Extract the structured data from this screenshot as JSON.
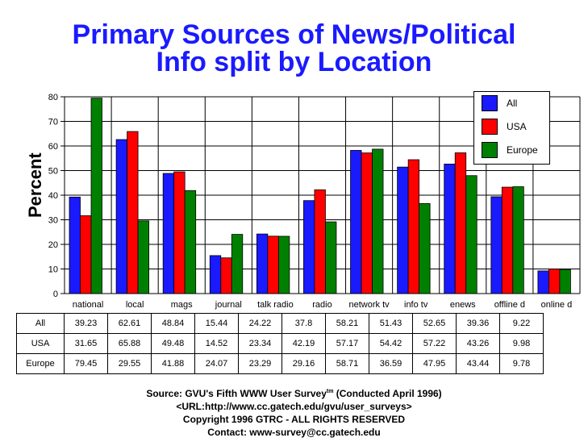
{
  "title_line1": "Primary Sources of News/Political",
  "title_line2": "Info split by Location",
  "chart_data": {
    "type": "bar",
    "title": "Primary Sources of News/Political Info split by Location",
    "ylabel": "Percent",
    "xlabel": "",
    "ylim": [
      0,
      80
    ],
    "yticks": [
      "0",
      "10",
      "20",
      "30",
      "40",
      "50",
      "60",
      "70",
      "80"
    ],
    "grid": true,
    "legend": "top-right",
    "categories": [
      "national",
      "local",
      "mags",
      "journal",
      "talk radio",
      "radio",
      "network tv",
      "info tv",
      "enews",
      "offline d",
      "online d"
    ],
    "series": [
      {
        "name": "All",
        "color": "#1a1aff",
        "values": [
          39.23,
          62.61,
          48.84,
          15.44,
          24.22,
          37.8,
          58.21,
          51.43,
          52.65,
          39.36,
          9.22
        ]
      },
      {
        "name": "USA",
        "color": "#ff0000",
        "values": [
          31.65,
          65.88,
          49.48,
          14.52,
          23.34,
          42.19,
          57.17,
          54.42,
          57.22,
          43.26,
          9.98
        ]
      },
      {
        "name": "Europe",
        "color": "#008000",
        "values": [
          79.45,
          29.55,
          41.88,
          24.07,
          23.29,
          29.16,
          58.71,
          36.59,
          47.95,
          43.44,
          9.78
        ]
      }
    ],
    "table": {
      "rows": [
        {
          "label": "All",
          "values": [
            "39.23",
            "62.61",
            "48.84",
            "15.44",
            "24.22",
            "37.8",
            "58.21",
            "51.43",
            "52.65",
            "39.36",
            "9.22"
          ]
        },
        {
          "label": "USA",
          "values": [
            "31.65",
            "65.88",
            "49.48",
            "14.52",
            "23.34",
            "42.19",
            "57.17",
            "54.42",
            "57.22",
            "43.26",
            "9.98"
          ]
        },
        {
          "label": "Europe",
          "values": [
            "79.45",
            "29.55",
            "41.88",
            "24.07",
            "23.29",
            "29.16",
            "58.71",
            "36.59",
            "47.95",
            "43.44",
            "9.78"
          ]
        }
      ]
    }
  },
  "footer": {
    "source_prefix": "Source: GVU's Fifth WWW User Survey",
    "source_tm": "tm",
    "source_suffix": " (Conducted April 1996)",
    "url": "<URL:http://www.cc.gatech.edu/gvu/user_surveys>",
    "copyright": "Copyright 1996 GTRC -  ALL RIGHTS RESERVED",
    "contact": "Contact: www-survey@cc.gatech.edu"
  }
}
